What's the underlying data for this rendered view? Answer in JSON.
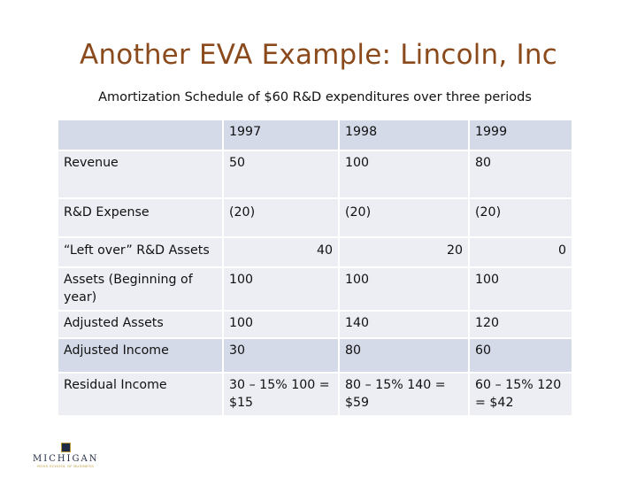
{
  "title": "Another EVA Example: Lincoln, Inc",
  "subtitle": "Amortization Schedule of $60 R&D expenditures over three periods",
  "table": {
    "header": [
      "",
      "1997",
      "1998",
      "1999"
    ],
    "rows": [
      {
        "label": "Revenue",
        "values": [
          "50",
          "100",
          "80"
        ]
      },
      {
        "label": "R&D Expense",
        "values": [
          "(20)",
          "(20)",
          "(20)"
        ]
      },
      {
        "label": "“Left over” R&D Assets",
        "values": [
          "40",
          "20",
          "0"
        ]
      },
      {
        "label": "Assets (Beginning of year)",
        "values": [
          "100",
          "100",
          "100"
        ]
      },
      {
        "label": "Adjusted Assets",
        "values": [
          "100",
          "140",
          "120"
        ]
      },
      {
        "label": "Adjusted Income",
        "values": [
          "30",
          "80",
          "60"
        ]
      },
      {
        "label": "Residual Income",
        "values": [
          "30 – 15% 100 = $15",
          "80 – 15% 140 =  $59",
          "60 – 15% 120 = $42"
        ]
      }
    ]
  },
  "logo": {
    "wordmark": "MICHIGAN",
    "tagline": "ROSS SCHOOL OF BUSINESS",
    "colors": {
      "navy": "#1f2a44",
      "gold": "#b89a3a"
    }
  },
  "colors": {
    "title": "#8b4a1c",
    "row_dark": "#d5dae9",
    "row_light": "#eceef4"
  }
}
